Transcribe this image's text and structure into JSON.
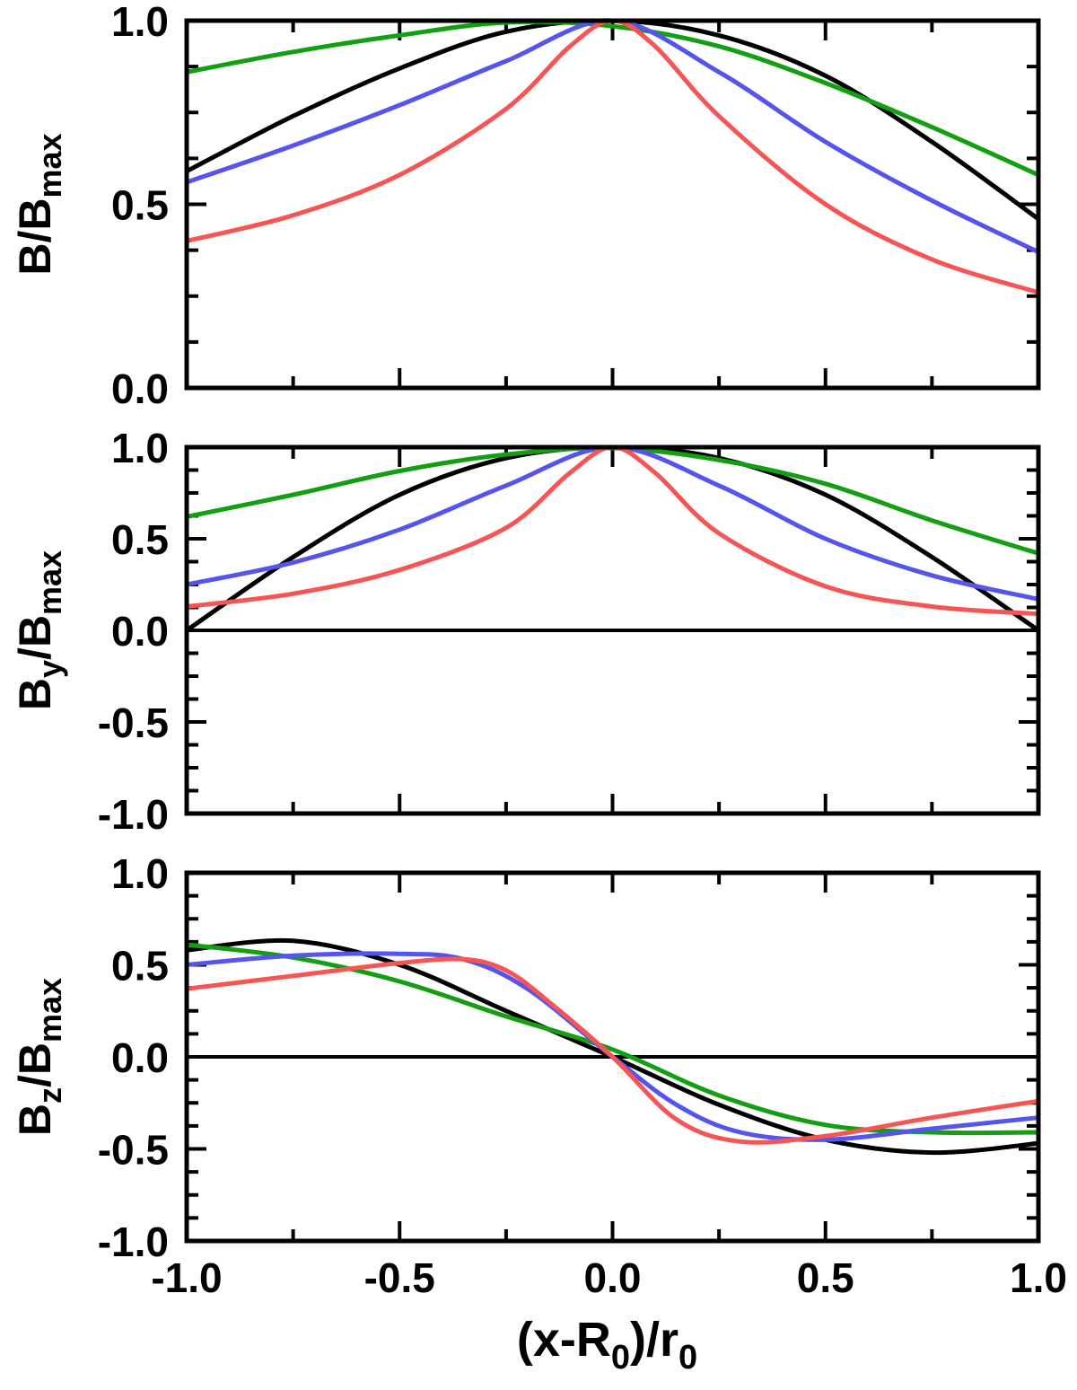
{
  "chart_data": [
    {
      "type": "line",
      "xlabel": "",
      "ylabel": {
        "main": "B/B",
        "sub": "max"
      },
      "xlim": [
        -1.0,
        1.0
      ],
      "ylim": [
        0.0,
        1.0
      ],
      "yticks": [
        "0.0",
        "0.5",
        "1.0"
      ],
      "xticks": [],
      "zero_line": false,
      "grid": false,
      "series": [
        {
          "color": "#000000",
          "x": [
            -1.0,
            -0.75,
            -0.5,
            -0.25,
            0.0,
            0.25,
            0.5,
            0.75,
            1.0
          ],
          "y": [
            0.59,
            0.74,
            0.87,
            0.97,
            1.0,
            0.96,
            0.85,
            0.67,
            0.46
          ]
        },
        {
          "color": "#12a012",
          "x": [
            -1.0,
            -0.75,
            -0.5,
            -0.25,
            0.0,
            0.25,
            0.5,
            0.75,
            1.0
          ],
          "y": [
            0.86,
            0.915,
            0.96,
            0.995,
            0.985,
            0.93,
            0.83,
            0.71,
            0.58
          ]
        },
        {
          "color": "#5555ee",
          "x": [
            -1.0,
            -0.75,
            -0.5,
            -0.25,
            0.0,
            0.25,
            0.5,
            0.75,
            1.0
          ],
          "y": [
            0.56,
            0.66,
            0.77,
            0.89,
            1.0,
            0.86,
            0.67,
            0.51,
            0.37
          ]
        },
        {
          "color": "#f55555",
          "x": [
            -1.0,
            -0.75,
            -0.5,
            -0.25,
            -0.1,
            0.0,
            0.1,
            0.25,
            0.5,
            0.75,
            1.0
          ],
          "y": [
            0.4,
            0.47,
            0.58,
            0.76,
            0.93,
            1.0,
            0.93,
            0.74,
            0.5,
            0.35,
            0.26
          ]
        }
      ]
    },
    {
      "type": "line",
      "xlabel": "",
      "ylabel": {
        "main": "B",
        "sub": "y",
        "rest": "/B",
        "sub2": "max"
      },
      "xlim": [
        -1.0,
        1.0
      ],
      "ylim": [
        -1.0,
        1.0
      ],
      "yticks": [
        "-1.0",
        "-0.5",
        "0.0",
        "0.5",
        "1.0"
      ],
      "xticks": [],
      "zero_line": true,
      "grid": false,
      "series": [
        {
          "color": "#000000",
          "x": [
            -1.0,
            -0.75,
            -0.5,
            -0.25,
            0.0,
            0.25,
            0.5,
            0.75,
            1.0
          ],
          "y": [
            0.0,
            0.4,
            0.74,
            0.94,
            1.0,
            0.94,
            0.74,
            0.4,
            0.0
          ]
        },
        {
          "color": "#12a012",
          "x": [
            -1.0,
            -0.75,
            -0.5,
            -0.25,
            0.0,
            0.25,
            0.5,
            0.75,
            1.0
          ],
          "y": [
            0.62,
            0.74,
            0.87,
            0.96,
            0.995,
            0.93,
            0.8,
            0.6,
            0.42
          ]
        },
        {
          "color": "#5555ee",
          "x": [
            -1.0,
            -0.75,
            -0.5,
            -0.25,
            0.0,
            0.25,
            0.5,
            0.75,
            1.0
          ],
          "y": [
            0.25,
            0.37,
            0.55,
            0.79,
            1.0,
            0.79,
            0.5,
            0.3,
            0.17
          ]
        },
        {
          "color": "#f55555",
          "x": [
            -1.0,
            -0.75,
            -0.5,
            -0.25,
            -0.1,
            0.0,
            0.1,
            0.25,
            0.5,
            0.75,
            1.0
          ],
          "y": [
            0.13,
            0.2,
            0.33,
            0.56,
            0.86,
            1.0,
            0.86,
            0.53,
            0.24,
            0.13,
            0.09
          ]
        }
      ]
    },
    {
      "type": "line",
      "xlabel": {
        "main": "(x-R",
        "sub": "0",
        "rest": ")/r",
        "sub2": "0"
      },
      "ylabel": {
        "main": "B",
        "sub": "z",
        "rest": "/B",
        "sub2": "max"
      },
      "xlim": [
        -1.0,
        1.0
      ],
      "ylim": [
        -1.0,
        1.0
      ],
      "yticks": [
        "-1.0",
        "-0.5",
        "0.0",
        "0.5",
        "1.0"
      ],
      "xticks": [
        "-1.0",
        "-0.5",
        "0.0",
        "0.5",
        "1.0"
      ],
      "zero_line": true,
      "grid": false,
      "series": [
        {
          "color": "#000000",
          "x": [
            -1.0,
            -0.75,
            -0.5,
            -0.25,
            0.0,
            0.25,
            0.5,
            0.75,
            1.0
          ],
          "y": [
            0.58,
            0.63,
            0.5,
            0.25,
            0.0,
            -0.26,
            -0.45,
            -0.52,
            -0.47
          ]
        },
        {
          "color": "#12a012",
          "x": [
            -1.0,
            -0.75,
            -0.5,
            -0.25,
            0.0,
            0.25,
            0.5,
            0.75,
            1.0
          ],
          "y": [
            0.61,
            0.54,
            0.41,
            0.22,
            0.04,
            -0.21,
            -0.37,
            -0.41,
            -0.41
          ]
        },
        {
          "color": "#5555ee",
          "x": [
            -1.0,
            -0.75,
            -0.5,
            -0.35,
            -0.2,
            0.0,
            0.15,
            0.3,
            0.5,
            0.75,
            1.0
          ],
          "y": [
            0.5,
            0.55,
            0.56,
            0.53,
            0.37,
            0.0,
            -0.26,
            -0.41,
            -0.45,
            -0.39,
            -0.33
          ]
        },
        {
          "color": "#f55555",
          "x": [
            -1.0,
            -0.75,
            -0.5,
            -0.35,
            -0.25,
            -0.15,
            0.0,
            0.15,
            0.3,
            0.5,
            0.75,
            1.0
          ],
          "y": [
            0.37,
            0.44,
            0.51,
            0.53,
            0.47,
            0.3,
            0.0,
            -0.34,
            -0.46,
            -0.43,
            -0.33,
            -0.24
          ]
        }
      ]
    }
  ]
}
